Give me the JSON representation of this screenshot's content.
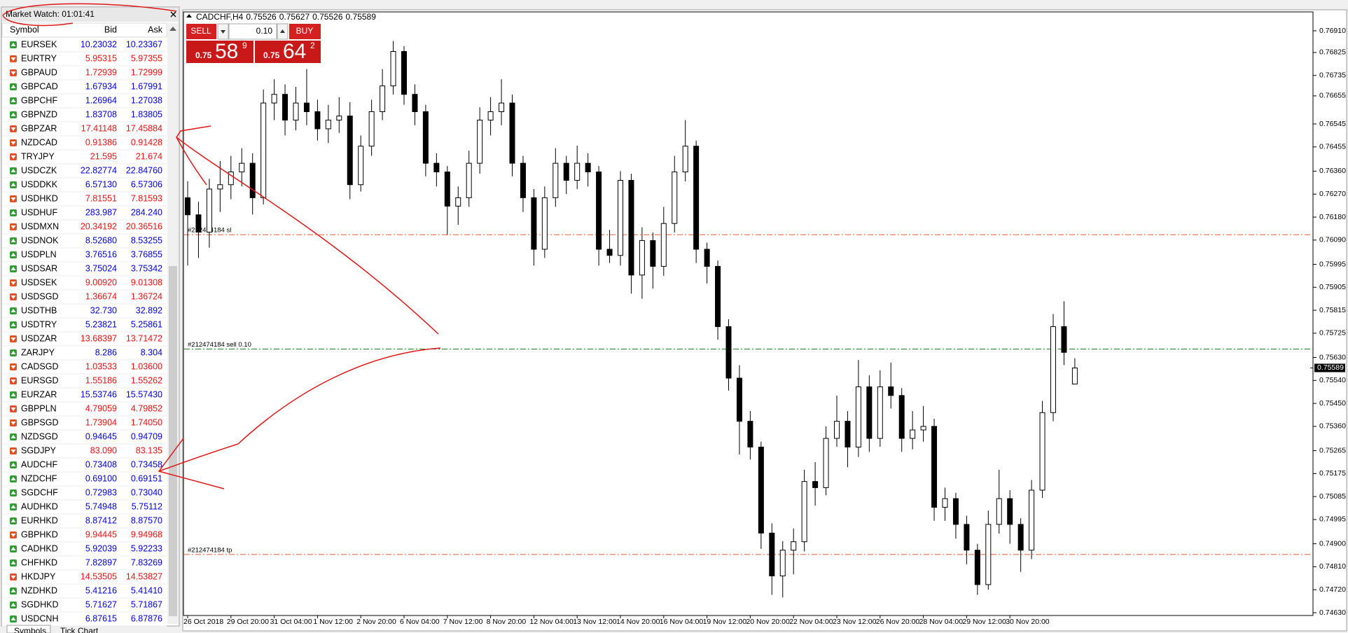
{
  "market_watch": {
    "title": "Market Watch: 01:01:41",
    "columns": [
      "Symbol",
      "Bid",
      "Ask"
    ],
    "rows": [
      [
        "EURSEK",
        "10.23032",
        "10.23367"
      ],
      [
        "EURTRY",
        "5.95315",
        "5.97355"
      ],
      [
        "GBPAUD",
        "1.72939",
        "1.72999"
      ],
      [
        "GBPCAD",
        "1.67934",
        "1.67991"
      ],
      [
        "GBPCHF",
        "1.26964",
        "1.27038"
      ],
      [
        "GBPNZD",
        "1.83708",
        "1.83805"
      ],
      [
        "GBPZAR",
        "17.41148",
        "17.45884"
      ],
      [
        "NZDCAD",
        "0.91386",
        "0.91428"
      ],
      [
        "TRYJPY",
        "21.595",
        "21.674"
      ],
      [
        "USDCZK",
        "22.82774",
        "22.84760"
      ],
      [
        "USDDKK",
        "6.57130",
        "6.57306"
      ],
      [
        "USDHKD",
        "7.81551",
        "7.81593"
      ],
      [
        "USDHUF",
        "283.987",
        "284.240"
      ],
      [
        "USDMXN",
        "20.34192",
        "20.36516"
      ],
      [
        "USDNOK",
        "8.52680",
        "8.53255"
      ],
      [
        "USDPLN",
        "3.76516",
        "3.76855"
      ],
      [
        "USDSAR",
        "3.75024",
        "3.75342"
      ],
      [
        "USDSEK",
        "9.00920",
        "9.01308"
      ],
      [
        "USDSGD",
        "1.36674",
        "1.36724"
      ],
      [
        "USDTHB",
        "32.730",
        "32.892"
      ],
      [
        "USDTRY",
        "5.23821",
        "5.25861"
      ],
      [
        "USDZAR",
        "13.68397",
        "13.71472"
      ],
      [
        "ZARJPY",
        "8.286",
        "8.304"
      ],
      [
        "CADSGD",
        "1.03533",
        "1.03600"
      ],
      [
        "EURSGD",
        "1.55186",
        "1.55262"
      ],
      [
        "EURZAR",
        "15.53746",
        "15.57430"
      ],
      [
        "GBPPLN",
        "4.79059",
        "4.79852"
      ],
      [
        "GBPSGD",
        "1.73904",
        "1.74050"
      ],
      [
        "NZDSGD",
        "0.94645",
        "0.94709"
      ],
      [
        "SGDJPY",
        "83.090",
        "83.135"
      ],
      [
        "AUDCHF",
        "0.73408",
        "0.73458"
      ],
      [
        "NZDCHF",
        "0.69100",
        "0.69151"
      ],
      [
        "SGDCHF",
        "0.72983",
        "0.73040"
      ],
      [
        "AUDHKD",
        "5.74948",
        "5.75112"
      ],
      [
        "EURHKD",
        "8.87412",
        "8.87570"
      ],
      [
        "GBPHKD",
        "9.94445",
        "9.94968"
      ],
      [
        "CADHKD",
        "5.92039",
        "5.92233"
      ],
      [
        "CHFHKD",
        "7.82897",
        "7.83269"
      ],
      [
        "HKDJPY",
        "14.53505",
        "14.53827"
      ],
      [
        "NZDHKD",
        "5.41216",
        "5.41410"
      ],
      [
        "SGDHKD",
        "5.71627",
        "5.71867"
      ],
      [
        "USDCNH",
        "6.87615",
        "6.87876"
      ]
    ],
    "trend": [
      "up",
      "down",
      "down",
      "up",
      "up",
      "up",
      "down",
      "down",
      "down",
      "up",
      "up",
      "down",
      "up",
      "down",
      "up",
      "up",
      "up",
      "down",
      "down",
      "up",
      "up",
      "down",
      "up",
      "down",
      "down",
      "up",
      "down",
      "down",
      "up",
      "down",
      "up",
      "up",
      "up",
      "up",
      "up",
      "down",
      "up",
      "up",
      "down",
      "up",
      "up",
      "up"
    ],
    "trend_colors": {
      "up": "#0000e0",
      "down": "#f01010"
    },
    "tabs": [
      "Symbols",
      "Tick Chart"
    ]
  },
  "trade_panel": {
    "sell": "SELL",
    "buy": "BUY",
    "lot": "0.10",
    "sell_price": [
      "0.75",
      "58",
      "9"
    ],
    "buy_price": [
      "0.75",
      "64",
      "2"
    ]
  },
  "chart_data": {
    "type": "candlestick",
    "symbol": "CADCHF,H4",
    "categories": [
      "26 Oct 2018",
      null,
      null,
      null,
      "29 Oct 20:00",
      null,
      null,
      null,
      "31 Oct 04:00",
      null,
      null,
      null,
      "1 Nov 12:00",
      null,
      null,
      null,
      "2 Nov 20:00",
      null,
      null,
      null,
      "6 Nov 04:00",
      null,
      null,
      null,
      "7 Nov 12:00",
      null,
      null,
      null,
      "8 Nov 20:00",
      null,
      null,
      null,
      "12 Nov 04:00",
      null,
      null,
      null,
      "13 Nov 12:00",
      null,
      null,
      null,
      "14 Nov 20:00",
      null,
      null,
      null,
      "16 Nov 04:00",
      null,
      null,
      null,
      "19 Nov 12:00",
      null,
      null,
      null,
      "20 Nov 20:00",
      null,
      null,
      null,
      "22 Nov 04:00",
      null,
      null,
      null,
      "23 Nov 12:00",
      null,
      null,
      null,
      "26 Nov 20:00",
      null,
      null,
      null,
      "28 Nov 04:00",
      null,
      null,
      null,
      "29 Nov 12:00",
      null,
      null,
      null,
      "30 Nov 20:00",
      null,
      null
    ],
    "ohlc": [
      [
        0.76256,
        0.7632,
        0.7599,
        0.76189
      ],
      [
        0.76189,
        0.7624,
        0.7602,
        0.76121
      ],
      [
        0.76121,
        0.7633,
        0.7606,
        0.7629
      ],
      [
        0.7629,
        0.764,
        0.762,
        0.76307
      ],
      [
        0.76307,
        0.7642,
        0.7625,
        0.76357
      ],
      [
        0.76357,
        0.7645,
        0.763,
        0.76391
      ],
      [
        0.76391,
        0.7643,
        0.7619,
        0.76256
      ],
      [
        0.76256,
        0.7668,
        0.7623,
        0.76627
      ],
      [
        0.76627,
        0.7672,
        0.7656,
        0.76661
      ],
      [
        0.76661,
        0.767,
        0.765,
        0.7656
      ],
      [
        0.7656,
        0.7669,
        0.7652,
        0.76627
      ],
      [
        0.76627,
        0.7676,
        0.7654,
        0.76593
      ],
      [
        0.76593,
        0.7664,
        0.7648,
        0.76526
      ],
      [
        0.76526,
        0.7662,
        0.7647,
        0.7656
      ],
      [
        0.7656,
        0.7665,
        0.7651,
        0.76576
      ],
      [
        0.76576,
        0.7663,
        0.7625,
        0.76307
      ],
      [
        0.76307,
        0.765,
        0.7628,
        0.76458
      ],
      [
        0.76458,
        0.7664,
        0.7642,
        0.76593
      ],
      [
        0.76593,
        0.7676,
        0.7656,
        0.76694
      ],
      [
        0.76694,
        0.7687,
        0.7666,
        0.76829
      ],
      [
        0.76829,
        0.7685,
        0.7662,
        0.76661
      ],
      [
        0.76661,
        0.767,
        0.7654,
        0.76593
      ],
      [
        0.76593,
        0.7662,
        0.7634,
        0.76391
      ],
      [
        0.76391,
        0.7643,
        0.763,
        0.76357
      ],
      [
        0.76357,
        0.7638,
        0.7611,
        0.76223
      ],
      [
        0.76223,
        0.763,
        0.7615,
        0.76256
      ],
      [
        0.76256,
        0.7644,
        0.7622,
        0.76391
      ],
      [
        0.76391,
        0.7661,
        0.7635,
        0.7656
      ],
      [
        0.7656,
        0.7665,
        0.765,
        0.76593
      ],
      [
        0.76593,
        0.7672,
        0.7654,
        0.76627
      ],
      [
        0.76627,
        0.7666,
        0.7634,
        0.76391
      ],
      [
        0.76391,
        0.7642,
        0.762,
        0.76256
      ],
      [
        0.76256,
        0.7629,
        0.7599,
        0.76054
      ],
      [
        0.76054,
        0.763,
        0.7602,
        0.76256
      ],
      [
        0.76256,
        0.7645,
        0.7622,
        0.76391
      ],
      [
        0.76391,
        0.7642,
        0.7627,
        0.76324
      ],
      [
        0.76324,
        0.7646,
        0.7629,
        0.76391
      ],
      [
        0.76391,
        0.7643,
        0.763,
        0.76357
      ],
      [
        0.76357,
        0.7638,
        0.7599,
        0.76054
      ],
      [
        0.76054,
        0.7613,
        0.76,
        0.7603
      ],
      [
        0.7603,
        0.7636,
        0.7599,
        0.76324
      ],
      [
        0.76324,
        0.7635,
        0.7588,
        0.75953
      ],
      [
        0.75953,
        0.7614,
        0.7586,
        0.76088
      ],
      [
        0.76088,
        0.7612,
        0.759,
        0.75987
      ],
      [
        0.75987,
        0.7622,
        0.7595,
        0.76155
      ],
      [
        0.76155,
        0.7642,
        0.7612,
        0.76357
      ],
      [
        0.76357,
        0.7656,
        0.7632,
        0.76458
      ],
      [
        0.76458,
        0.7648,
        0.76,
        0.76054
      ],
      [
        0.76054,
        0.7608,
        0.7592,
        0.75987
      ],
      [
        0.75987,
        0.7601,
        0.757,
        0.75751
      ],
      [
        0.75751,
        0.7578,
        0.755,
        0.75549
      ],
      [
        0.75549,
        0.756,
        0.7525,
        0.7538
      ],
      [
        0.7538,
        0.7542,
        0.7523,
        0.75279
      ],
      [
        0.75279,
        0.753,
        0.7488,
        0.74942
      ],
      [
        0.74942,
        0.7498,
        0.747,
        0.74774
      ],
      [
        0.74774,
        0.7491,
        0.7469,
        0.74875
      ],
      [
        0.74875,
        0.7496,
        0.7478,
        0.74908
      ],
      [
        0.74908,
        0.7519,
        0.7487,
        0.75144
      ],
      [
        0.75144,
        0.7522,
        0.7505,
        0.7512
      ],
      [
        0.7512,
        0.7536,
        0.7509,
        0.75313
      ],
      [
        0.75313,
        0.7548,
        0.7528,
        0.7538
      ],
      [
        0.7538,
        0.7542,
        0.752,
        0.75279
      ],
      [
        0.75279,
        0.7562,
        0.7524,
        0.75515
      ],
      [
        0.75515,
        0.7556,
        0.7526,
        0.75313
      ],
      [
        0.75313,
        0.7558,
        0.7528,
        0.75515
      ],
      [
        0.75515,
        0.7561,
        0.7543,
        0.75481
      ],
      [
        0.75481,
        0.7551,
        0.7526,
        0.75313
      ],
      [
        0.75313,
        0.7542,
        0.7527,
        0.75346
      ],
      [
        0.75346,
        0.7544,
        0.753,
        0.7536
      ],
      [
        0.7536,
        0.7539,
        0.7499,
        0.75043
      ],
      [
        0.75043,
        0.7512,
        0.7499,
        0.75077
      ],
      [
        0.75077,
        0.751,
        0.7492,
        0.74976
      ],
      [
        0.74976,
        0.7501,
        0.7482,
        0.74875
      ],
      [
        0.74875,
        0.749,
        0.747,
        0.7474
      ],
      [
        0.7474,
        0.7503,
        0.7472,
        0.74976
      ],
      [
        0.74976,
        0.7519,
        0.7494,
        0.75077
      ],
      [
        0.75077,
        0.7511,
        0.749,
        0.74976
      ],
      [
        0.74976,
        0.75,
        0.7479,
        0.74875
      ],
      [
        0.74875,
        0.7515,
        0.7484,
        0.7511
      ],
      [
        0.7511,
        0.7546,
        0.7508,
        0.75414
      ],
      [
        0.75414,
        0.758,
        0.7538,
        0.75751
      ],
      [
        0.75751,
        0.7585,
        0.756,
        0.7565
      ],
      [
        0.75526,
        0.75627,
        0.75526,
        0.75589
      ]
    ],
    "ylim": [
      0.74619,
      0.76984
    ],
    "yticks": [
      {
        "value": 0.7691,
        "label": "0.76910"
      },
      0.76825,
      0.76735,
      0.76655,
      0.76545,
      0.76455,
      {
        "value": 0.7636,
        "label": "0.76360"
      },
      {
        "value": 0.7627,
        "label": "0.76270"
      },
      {
        "value": 0.7618,
        "label": "0.76180"
      },
      {
        "value": 0.7609,
        "label": "0.76090"
      },
      0.75995,
      0.75905,
      0.75815,
      0.75725,
      {
        "value": 0.7563,
        "label": "0.75630"
      },
      {
        "value": 0.7554,
        "label": "0.75540"
      },
      {
        "value": 0.7545,
        "label": "0.75450"
      },
      {
        "value": 0.7536,
        "label": "0.75360"
      },
      0.75265,
      0.75175,
      0.75085,
      0.74995,
      {
        "value": 0.749,
        "label": "0.74900"
      },
      {
        "value": 0.7481,
        "label": "0.74810"
      },
      {
        "value": 0.7472,
        "label": "0.74720"
      },
      {
        "value": 0.7463,
        "label": "0.74630"
      }
    ],
    "orders": [
      {
        "label": "#212474184 sl",
        "price": 0.76111,
        "color": "#f05a28"
      },
      {
        "label": "#212474184 sell 0.10",
        "price": 0.75663,
        "color": "#1e8a1e"
      },
      {
        "label": "#212474184 tp",
        "price": 0.74858,
        "color": "#f05a28"
      }
    ],
    "up_color": "#ffffff",
    "down_color": "#000000"
  }
}
